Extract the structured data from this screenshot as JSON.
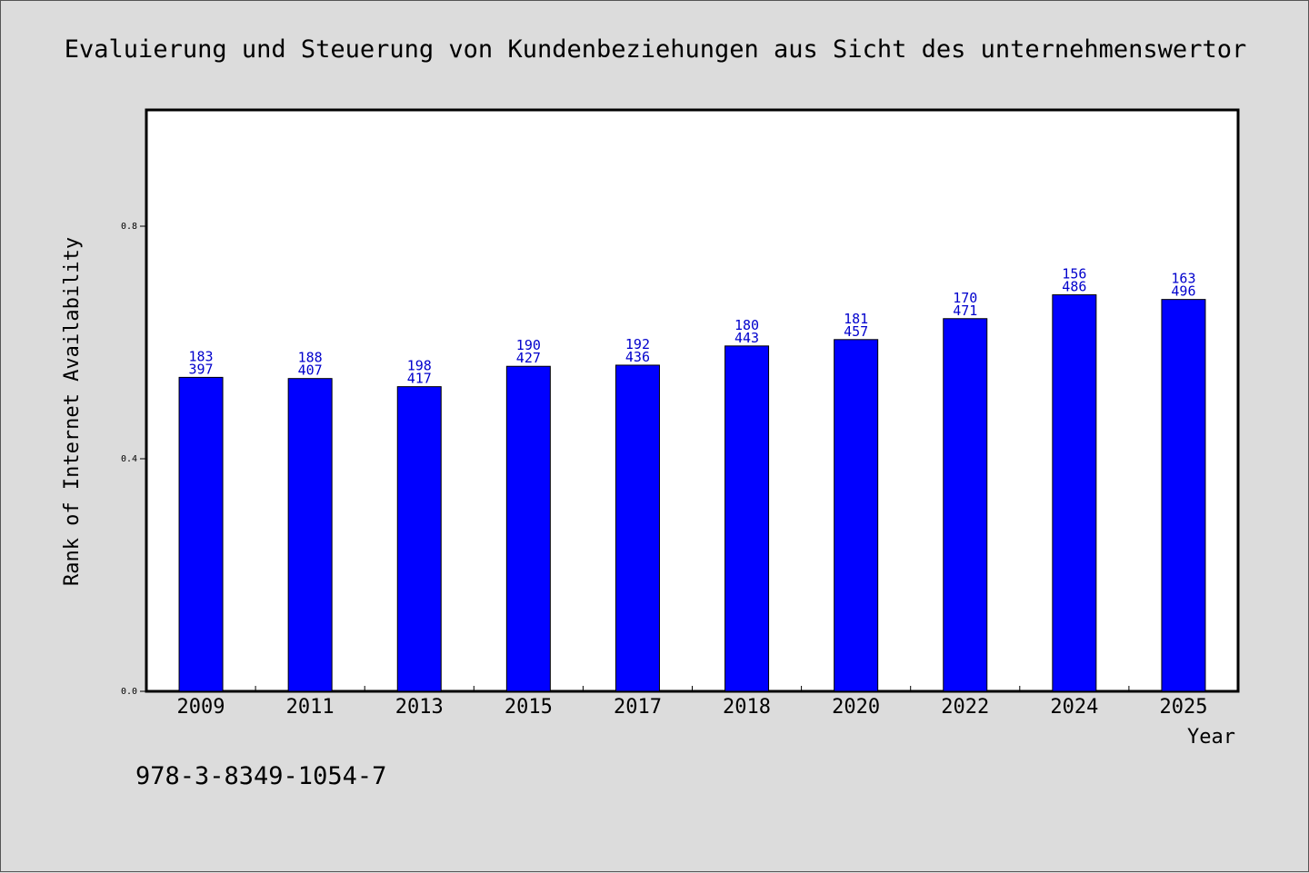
{
  "chart_data": {
    "type": "bar",
    "title": "Evaluierung und Steuerung von Kundenbeziehungen aus Sicht des unternehmenswertor",
    "xlabel": "Year",
    "ylabel": "Rank of Internet Availability",
    "categories": [
      "2009",
      "2011",
      "2013",
      "2015",
      "2017",
      "2018",
      "2020",
      "2022",
      "2024",
      "2025"
    ],
    "values": [
      0.54,
      0.538,
      0.524,
      0.559,
      0.561,
      0.594,
      0.605,
      0.641,
      0.682,
      0.674
    ],
    "bar_labels": [
      [
        "183",
        "397"
      ],
      [
        "188",
        "407"
      ],
      [
        "198",
        "417"
      ],
      [
        "190",
        "427"
      ],
      [
        "192",
        "436"
      ],
      [
        "180",
        "443"
      ],
      [
        "181",
        "457"
      ],
      [
        "170",
        "471"
      ],
      [
        "156",
        "486"
      ],
      [
        "163",
        "496"
      ]
    ],
    "ylim": [
      0,
      1.0
    ],
    "yticks": [
      "0.0",
      "0.4",
      "0.8"
    ],
    "ytick_values": [
      0.0,
      0.4,
      0.8
    ],
    "grid": false,
    "colors": {
      "bar": "#0000ff",
      "bar_label": "#0000cc",
      "background": "#dcdcdc",
      "plot_bg": "#ffffff"
    }
  },
  "footnote": "978-3-8349-1054-7"
}
